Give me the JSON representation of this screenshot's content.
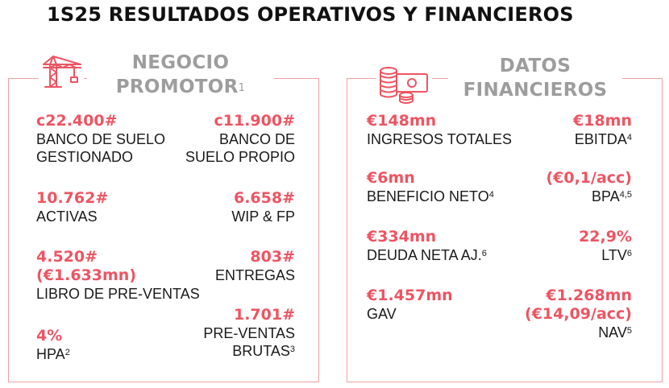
{
  "title": "1S25 RESULTADOS OPERATIVOS Y FINANCIEROS",
  "colors": {
    "accent": "#ee5462",
    "border": "#f0a0a5",
    "header_gray": "#9d9d9d",
    "text": "#1a1a1a"
  },
  "left_panel": {
    "header_line1": "NEGOCIO",
    "header_line2": "PROMOTOR",
    "header_sup": "1",
    "icon": "crane-icon",
    "stats": {
      "banco_gestionado": {
        "value": "c22.400#",
        "label1": "BANCO DE SUELO",
        "label2": "GESTIONADO"
      },
      "banco_propio": {
        "value": "c11.900#",
        "label1": "BANCO DE",
        "label2": "SUELO PROPIO"
      },
      "activas": {
        "value": "10.762#",
        "label": "ACTIVAS"
      },
      "wip": {
        "value": "6.658#",
        "label": "WIP & FP"
      },
      "preventas_libro": {
        "value1": "4.520#",
        "value2": "(€1.633mn)",
        "label": "LIBRO DE PRE-VENTAS"
      },
      "entregas": {
        "value": "803#",
        "label": "ENTREGAS"
      },
      "preventas_brutas": {
        "value": "1.701#",
        "label1": "PRE-VENTAS",
        "label2": "BRUTAS",
        "sup": "3"
      },
      "hpa": {
        "value": "4%",
        "label": "HPA",
        "sup": "2"
      }
    }
  },
  "right_panel": {
    "header_line1": "DATOS",
    "header_line2": "FINANCIEROS",
    "icon": "coins-banknote-icon",
    "stats": {
      "ingresos": {
        "value": "€148mn",
        "label": "INGRESOS TOTALES"
      },
      "ebitda": {
        "value": "€18mn",
        "label": "EBITDA",
        "sup": "4"
      },
      "beneficio": {
        "value": "€6mn",
        "label": "BENEFICIO NETO",
        "sup": "4"
      },
      "bpa": {
        "value": "(€0,1/acc)",
        "label": "BPA",
        "sup": "4,5"
      },
      "deuda": {
        "value": "€334mn",
        "label": "DEUDA NETA AJ.",
        "sup": "6"
      },
      "ltv": {
        "value": "22,9%",
        "label": "LTV",
        "sup": "6"
      },
      "gav": {
        "value": "€1.457mn",
        "label": "GAV"
      },
      "nav": {
        "value1": "€1.268mn",
        "value2": "(€14,09/acc)",
        "label": "NAV",
        "sup": "5"
      }
    }
  }
}
